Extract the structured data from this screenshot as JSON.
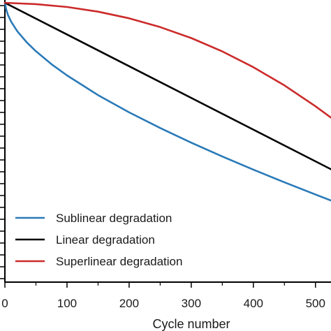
{
  "chart_data": {
    "type": "line",
    "title": "",
    "xlabel": "Cycle number",
    "ylabel": "",
    "xlim": [
      0,
      525
    ],
    "ylim": [
      0,
      1
    ],
    "x_ticks": [
      0,
      100,
      200,
      300,
      400,
      500
    ],
    "x_tick_labels": [
      "0",
      "100",
      "200",
      "300",
      "400",
      "500"
    ],
    "grid": false,
    "legend_position": "bottom-left",
    "series": [
      {
        "name": "Sublinear degradation",
        "color": "#2a7ab8",
        "x": [
          0,
          2,
          5,
          10,
          20,
          35,
          50,
          75,
          100,
          150,
          200,
          250,
          300,
          350,
          400,
          450,
          500,
          525
        ],
        "y": [
          0.99,
          0.9672,
          0.947,
          0.9234,
          0.889,
          0.8506,
          0.8184,
          0.7725,
          0.7326,
          0.6628,
          0.6018,
          0.5462,
          0.4944,
          0.4454,
          0.3987,
          0.3538,
          0.3103,
          0.2892
        ]
      },
      {
        "name": "Linear degradation",
        "color": "#000000",
        "x": [
          0,
          525
        ],
        "y": [
          0.99,
          0.4
        ]
      },
      {
        "name": "Superlinear degradation",
        "color": "#cc2a2a",
        "x": [
          0,
          50,
          100,
          150,
          200,
          250,
          300,
          350,
          400,
          450,
          500,
          525
        ],
        "y": [
          0.99,
          0.9855,
          0.9753,
          0.9587,
          0.9351,
          0.904,
          0.865,
          0.8178,
          0.762,
          0.6972,
          0.6233,
          0.5829
        ]
      }
    ]
  }
}
